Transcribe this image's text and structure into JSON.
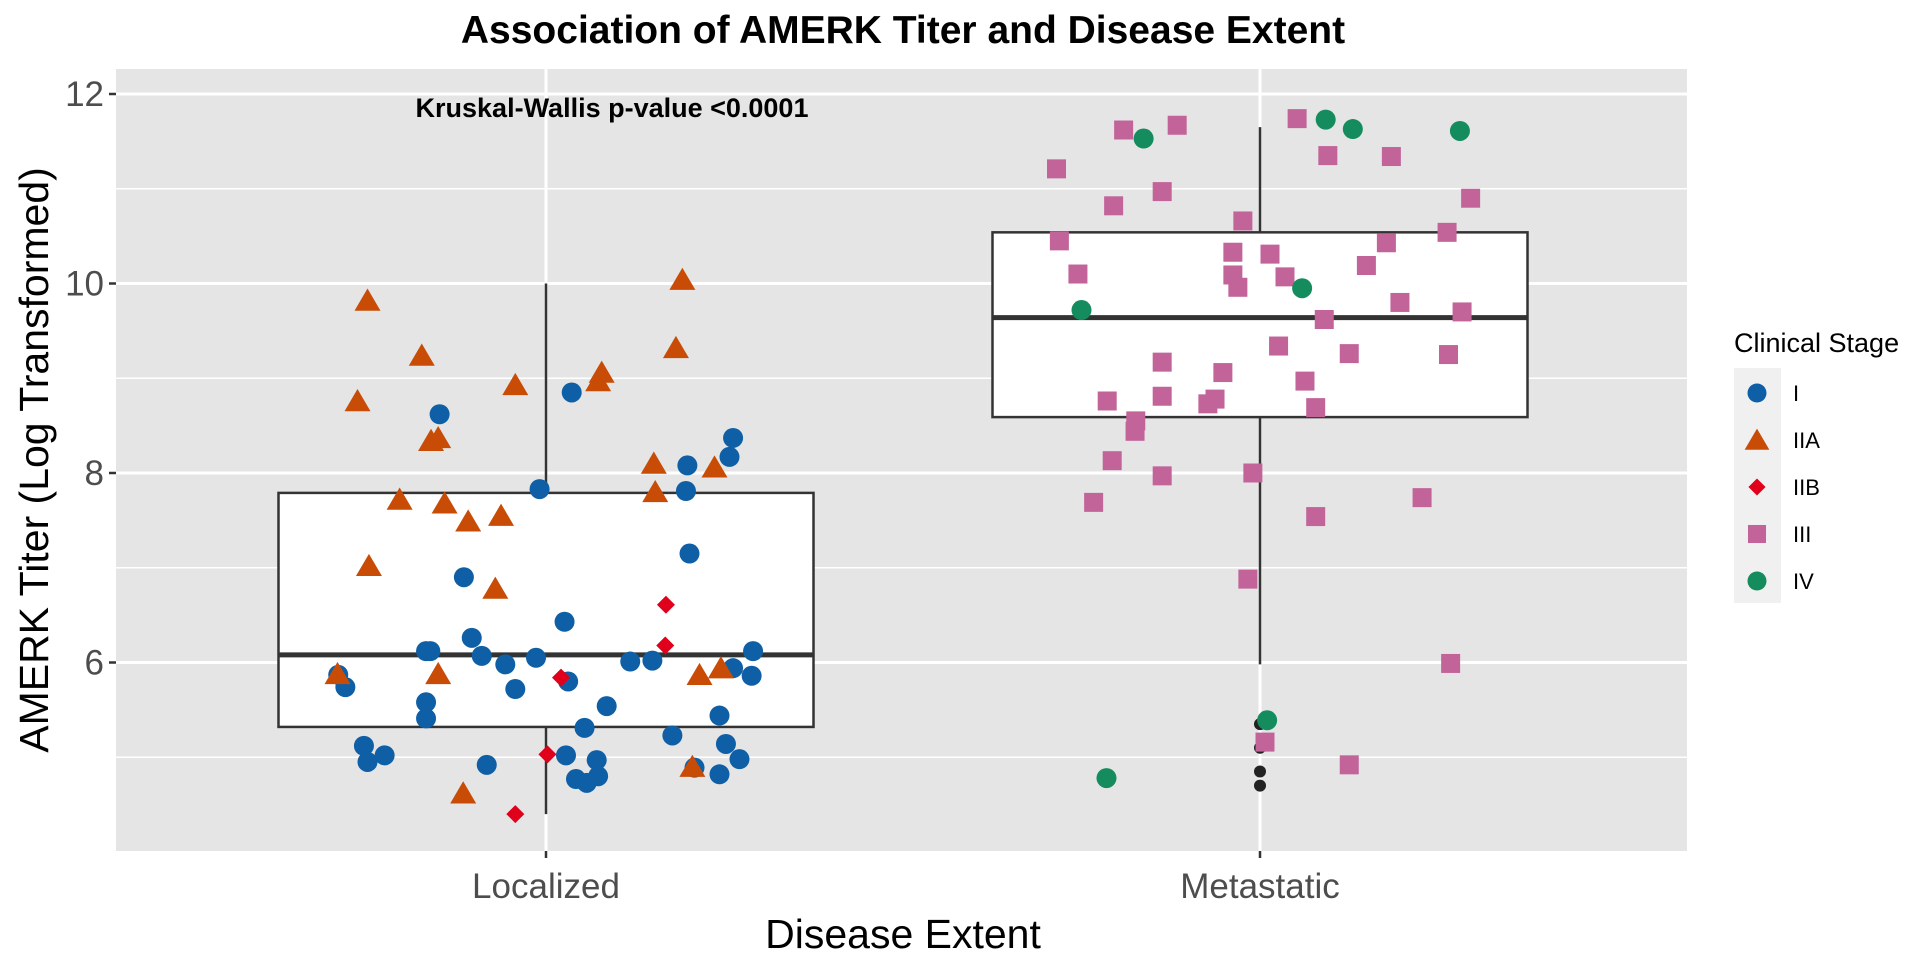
{
  "chart_data": {
    "type": "box+jitter",
    "title": "Association of AMERK Titer and Disease Extent",
    "annotation": "Kruskal-Wallis p-value <0.0001",
    "xlabel": "Disease Extent",
    "ylabel": "AMERK Titer (Log Transformed)",
    "categories": [
      "Localized",
      "Metastatic"
    ],
    "ylim": [
      4.0,
      12.25
    ],
    "yticks": [
      6,
      8,
      10,
      12
    ],
    "ytick_labels": [
      "6",
      "8",
      "10",
      "12"
    ],
    "grid": true,
    "legend": {
      "title": "Clinical Stage",
      "position": "right",
      "entries": [
        {
          "label": "I",
          "shape": "circle",
          "color": "#0F5FA6"
        },
        {
          "label": "IIA",
          "shape": "triangle",
          "color": "#C84C06"
        },
        {
          "label": "IIB",
          "shape": "diamond",
          "color": "#E0001B"
        },
        {
          "label": "III",
          "shape": "square",
          "color": "#C2649A"
        },
        {
          "label": "IV",
          "shape": "circle",
          "color": "#148C5E"
        }
      ]
    },
    "boxes": [
      {
        "category": "Localized",
        "whisker_low": 4.4,
        "q1": 5.32,
        "median": 6.08,
        "q3": 7.79,
        "whisker_high": 10.0,
        "outliers": []
      },
      {
        "category": "Metastatic",
        "whisker_low": 5.98,
        "q1": 8.59,
        "median": 9.64,
        "q3": 10.54,
        "whisker_high": 11.65,
        "outliers": [
          5.35,
          5.1,
          4.85,
          4.7
        ]
      }
    ],
    "points": [
      {
        "c": 0,
        "j": -0.291,
        "v": 5.87,
        "s": "I"
      },
      {
        "c": 0,
        "j": -0.281,
        "v": 5.74,
        "s": "I"
      },
      {
        "c": 0,
        "j": -0.255,
        "v": 5.12,
        "s": "I"
      },
      {
        "c": 0,
        "j": -0.25,
        "v": 4.95,
        "s": "I"
      },
      {
        "c": 0,
        "j": -0.226,
        "v": 5.02,
        "s": "I"
      },
      {
        "c": 0,
        "j": -0.168,
        "v": 6.12,
        "s": "I"
      },
      {
        "c": 0,
        "j": -0.162,
        "v": 6.12,
        "s": "I"
      },
      {
        "c": 0,
        "j": -0.168,
        "v": 5.58,
        "s": "I"
      },
      {
        "c": 0,
        "j": -0.168,
        "v": 5.41,
        "s": "I"
      },
      {
        "c": 0,
        "j": -0.149,
        "v": 8.62,
        "s": "I"
      },
      {
        "c": 0,
        "j": -0.115,
        "v": 6.9,
        "s": "I"
      },
      {
        "c": 0,
        "j": -0.104,
        "v": 6.26,
        "s": "I"
      },
      {
        "c": 0,
        "j": -0.09,
        "v": 6.07,
        "s": "I"
      },
      {
        "c": 0,
        "j": -0.083,
        "v": 4.92,
        "s": "I"
      },
      {
        "c": 0,
        "j": -0.057,
        "v": 5.98,
        "s": "I"
      },
      {
        "c": 0,
        "j": -0.043,
        "v": 5.72,
        "s": "I"
      },
      {
        "c": 0,
        "j": -0.014,
        "v": 6.05,
        "s": "I"
      },
      {
        "c": 0,
        "j": -0.009,
        "v": 7.83,
        "s": "I"
      },
      {
        "c": 0,
        "j": 0.026,
        "v": 6.43,
        "s": "I"
      },
      {
        "c": 0,
        "j": 0.031,
        "v": 5.8,
        "s": "I"
      },
      {
        "c": 0,
        "j": 0.028,
        "v": 5.02,
        "s": "I"
      },
      {
        "c": 0,
        "j": 0.036,
        "v": 8.85,
        "s": "I"
      },
      {
        "c": 0,
        "j": 0.054,
        "v": 5.31,
        "s": "I"
      },
      {
        "c": 0,
        "j": 0.042,
        "v": 4.77,
        "s": "I"
      },
      {
        "c": 0,
        "j": 0.057,
        "v": 4.73,
        "s": "I"
      },
      {
        "c": 0,
        "j": 0.071,
        "v": 4.97,
        "s": "I"
      },
      {
        "c": 0,
        "j": 0.073,
        "v": 4.8,
        "s": "I"
      },
      {
        "c": 0,
        "j": 0.085,
        "v": 5.54,
        "s": "I"
      },
      {
        "c": 0,
        "j": 0.118,
        "v": 6.01,
        "s": "I"
      },
      {
        "c": 0,
        "j": 0.149,
        "v": 6.02,
        "s": "I"
      },
      {
        "c": 0,
        "j": 0.177,
        "v": 5.23,
        "s": "I"
      },
      {
        "c": 0,
        "j": 0.198,
        "v": 8.08,
        "s": "I"
      },
      {
        "c": 0,
        "j": 0.196,
        "v": 7.81,
        "s": "I"
      },
      {
        "c": 0,
        "j": 0.201,
        "v": 7.15,
        "s": "I"
      },
      {
        "c": 0,
        "j": 0.208,
        "v": 4.89,
        "s": "I"
      },
      {
        "c": 0,
        "j": 0.243,
        "v": 5.44,
        "s": "I"
      },
      {
        "c": 0,
        "j": 0.243,
        "v": 4.82,
        "s": "I"
      },
      {
        "c": 0,
        "j": 0.252,
        "v": 5.14,
        "s": "I"
      },
      {
        "c": 0,
        "j": 0.262,
        "v": 5.94,
        "s": "I"
      },
      {
        "c": 0,
        "j": 0.271,
        "v": 4.98,
        "s": "I"
      },
      {
        "c": 0,
        "j": 0.257,
        "v": 8.17,
        "s": "I"
      },
      {
        "c": 0,
        "j": 0.262,
        "v": 8.37,
        "s": "I"
      },
      {
        "c": 0,
        "j": 0.288,
        "v": 5.86,
        "s": "I"
      },
      {
        "c": 0,
        "j": 0.29,
        "v": 6.12,
        "s": "I"
      },
      {
        "c": 0,
        "j": -0.292,
        "v": 5.88,
        "s": "IIA"
      },
      {
        "c": 0,
        "j": -0.264,
        "v": 8.76,
        "s": "IIA"
      },
      {
        "c": 0,
        "j": -0.25,
        "v": 9.82,
        "s": "IIA"
      },
      {
        "c": 0,
        "j": -0.248,
        "v": 7.02,
        "s": "IIA"
      },
      {
        "c": 0,
        "j": -0.205,
        "v": 7.72,
        "s": "IIA"
      },
      {
        "c": 0,
        "j": -0.174,
        "v": 9.24,
        "s": "IIA"
      },
      {
        "c": 0,
        "j": -0.161,
        "v": 8.34,
        "s": "IIA"
      },
      {
        "c": 0,
        "j": -0.151,
        "v": 8.37,
        "s": "IIA"
      },
      {
        "c": 0,
        "j": -0.151,
        "v": 5.88,
        "s": "IIA"
      },
      {
        "c": 0,
        "j": -0.142,
        "v": 7.68,
        "s": "IIA"
      },
      {
        "c": 0,
        "j": -0.109,
        "v": 7.49,
        "s": "IIA"
      },
      {
        "c": 0,
        "j": -0.116,
        "v": 4.62,
        "s": "IIA"
      },
      {
        "c": 0,
        "j": -0.071,
        "v": 6.78,
        "s": "IIA"
      },
      {
        "c": 0,
        "j": -0.063,
        "v": 7.55,
        "s": "IIA"
      },
      {
        "c": 0,
        "j": -0.043,
        "v": 8.93,
        "s": "IIA"
      },
      {
        "c": 0,
        "j": 0.073,
        "v": 8.97,
        "s": "IIA"
      },
      {
        "c": 0,
        "j": 0.078,
        "v": 9.06,
        "s": "IIA"
      },
      {
        "c": 0,
        "j": 0.151,
        "v": 8.1,
        "s": "IIA"
      },
      {
        "c": 0,
        "j": 0.153,
        "v": 7.8,
        "s": "IIA"
      },
      {
        "c": 0,
        "j": 0.182,
        "v": 9.32,
        "s": "IIA"
      },
      {
        "c": 0,
        "j": 0.191,
        "v": 10.04,
        "s": "IIA"
      },
      {
        "c": 0,
        "j": 0.205,
        "v": 4.9,
        "s": "IIA"
      },
      {
        "c": 0,
        "j": 0.215,
        "v": 5.87,
        "s": "IIA"
      },
      {
        "c": 0,
        "j": 0.236,
        "v": 8.06,
        "s": "IIA"
      },
      {
        "c": 0,
        "j": 0.245,
        "v": 5.94,
        "s": "IIA"
      },
      {
        "c": 0,
        "j": 0.168,
        "v": 6.61,
        "s": "IIB"
      },
      {
        "c": 0,
        "j": 0.167,
        "v": 6.18,
        "s": "IIB"
      },
      {
        "c": 0,
        "j": 0.021,
        "v": 5.84,
        "s": "IIB"
      },
      {
        "c": 0,
        "j": 0.002,
        "v": 5.03,
        "s": "IIB"
      },
      {
        "c": 0,
        "j": -0.043,
        "v": 4.4,
        "s": "IIB"
      },
      {
        "c": 1,
        "j": -0.285,
        "v": 11.21,
        "s": "III"
      },
      {
        "c": 1,
        "j": -0.281,
        "v": 10.45,
        "s": "III"
      },
      {
        "c": 1,
        "j": -0.255,
        "v": 10.1,
        "s": "III"
      },
      {
        "c": 1,
        "j": -0.233,
        "v": 7.69,
        "s": "III"
      },
      {
        "c": 1,
        "j": -0.214,
        "v": 8.76,
        "s": "III"
      },
      {
        "c": 1,
        "j": -0.207,
        "v": 8.13,
        "s": "III"
      },
      {
        "c": 1,
        "j": -0.205,
        "v": 10.82,
        "s": "III"
      },
      {
        "c": 1,
        "j": -0.191,
        "v": 11.62,
        "s": "III"
      },
      {
        "c": 1,
        "j": -0.174,
        "v": 8.55,
        "s": "III"
      },
      {
        "c": 1,
        "j": -0.175,
        "v": 8.44,
        "s": "III"
      },
      {
        "c": 1,
        "j": -0.137,
        "v": 10.97,
        "s": "III"
      },
      {
        "c": 1,
        "j": -0.137,
        "v": 9.17,
        "s": "III"
      },
      {
        "c": 1,
        "j": -0.137,
        "v": 8.81,
        "s": "III"
      },
      {
        "c": 1,
        "j": -0.137,
        "v": 7.97,
        "s": "III"
      },
      {
        "c": 1,
        "j": -0.116,
        "v": 11.67,
        "s": "III"
      },
      {
        "c": 1,
        "j": -0.073,
        "v": 8.73,
        "s": "III"
      },
      {
        "c": 1,
        "j": -0.063,
        "v": 8.78,
        "s": "III"
      },
      {
        "c": 1,
        "j": -0.052,
        "v": 9.06,
        "s": "III"
      },
      {
        "c": 1,
        "j": -0.038,
        "v": 10.33,
        "s": "III"
      },
      {
        "c": 1,
        "j": -0.038,
        "v": 10.09,
        "s": "III"
      },
      {
        "c": 1,
        "j": -0.031,
        "v": 9.96,
        "s": "III"
      },
      {
        "c": 1,
        "j": -0.024,
        "v": 10.66,
        "s": "III"
      },
      {
        "c": 1,
        "j": -0.017,
        "v": 6.88,
        "s": "III"
      },
      {
        "c": 1,
        "j": -0.01,
        "v": 8.0,
        "s": "III"
      },
      {
        "c": 1,
        "j": 0.007,
        "v": 5.16,
        "s": "III"
      },
      {
        "c": 1,
        "j": 0.014,
        "v": 10.31,
        "s": "III"
      },
      {
        "c": 1,
        "j": 0.026,
        "v": 9.34,
        "s": "III"
      },
      {
        "c": 1,
        "j": 0.035,
        "v": 10.07,
        "s": "III"
      },
      {
        "c": 1,
        "j": 0.052,
        "v": 11.74,
        "s": "III"
      },
      {
        "c": 1,
        "j": 0.063,
        "v": 8.97,
        "s": "III"
      },
      {
        "c": 1,
        "j": 0.078,
        "v": 7.54,
        "s": "III"
      },
      {
        "c": 1,
        "j": 0.078,
        "v": 8.69,
        "s": "III"
      },
      {
        "c": 1,
        "j": 0.09,
        "v": 9.62,
        "s": "III"
      },
      {
        "c": 1,
        "j": 0.095,
        "v": 11.35,
        "s": "III"
      },
      {
        "c": 1,
        "j": 0.125,
        "v": 9.26,
        "s": "III"
      },
      {
        "c": 1,
        "j": 0.125,
        "v": 4.92,
        "s": "III"
      },
      {
        "c": 1,
        "j": 0.149,
        "v": 10.19,
        "s": "III"
      },
      {
        "c": 1,
        "j": 0.177,
        "v": 10.43,
        "s": "III"
      },
      {
        "c": 1,
        "j": 0.184,
        "v": 11.34,
        "s": "III"
      },
      {
        "c": 1,
        "j": 0.196,
        "v": 9.8,
        "s": "III"
      },
      {
        "c": 1,
        "j": 0.227,
        "v": 7.74,
        "s": "III"
      },
      {
        "c": 1,
        "j": 0.262,
        "v": 10.54,
        "s": "III"
      },
      {
        "c": 1,
        "j": 0.264,
        "v": 9.25,
        "s": "III"
      },
      {
        "c": 1,
        "j": 0.267,
        "v": 5.99,
        "s": "III"
      },
      {
        "c": 1,
        "j": 0.283,
        "v": 9.7,
        "s": "III"
      },
      {
        "c": 1,
        "j": 0.295,
        "v": 10.9,
        "s": "III"
      },
      {
        "c": 1,
        "j": -0.25,
        "v": 9.72,
        "s": "IV"
      },
      {
        "c": 1,
        "j": -0.215,
        "v": 4.78,
        "s": "IV"
      },
      {
        "c": 1,
        "j": -0.163,
        "v": 11.53,
        "s": "IV"
      },
      {
        "c": 1,
        "j": 0.01,
        "v": 5.39,
        "s": "IV"
      },
      {
        "c": 1,
        "j": 0.059,
        "v": 9.95,
        "s": "IV"
      },
      {
        "c": 1,
        "j": 0.092,
        "v": 11.73,
        "s": "IV"
      },
      {
        "c": 1,
        "j": 0.13,
        "v": 11.63,
        "s": "IV"
      },
      {
        "c": 1,
        "j": 0.28,
        "v": 11.61,
        "s": "IV"
      }
    ]
  }
}
